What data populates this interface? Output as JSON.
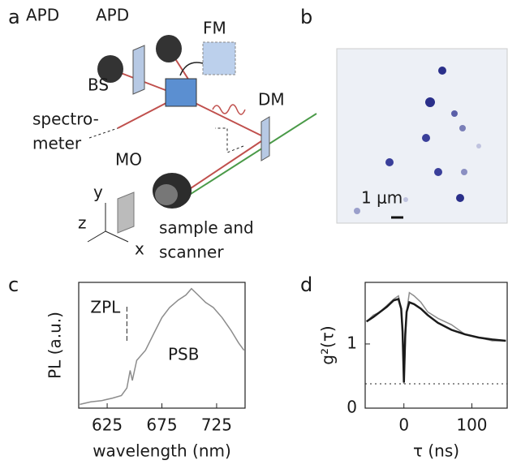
{
  "panels": {
    "a": "a",
    "b": "b",
    "c": "c",
    "d": "d"
  },
  "diagram": {
    "apd_left": "APD",
    "apd_right": "APD",
    "fm": "FM",
    "bs": "BS",
    "spectrometer_1": "spectro-",
    "spectrometer_2": "meter",
    "dm": "DM",
    "mo": "MO",
    "axis_y": "y",
    "axis_z": "z",
    "axis_x": "x",
    "sample_1": "sample and",
    "sample_2": "scanner"
  },
  "image": {
    "scale_bar": "1 μm"
  },
  "chart_data": [
    {
      "type": "line",
      "xlabel": "wavelength (nm)",
      "ylabel": "PL (a.u.)",
      "x": [
        600,
        610,
        620,
        630,
        638,
        643,
        646,
        648,
        652,
        660,
        668,
        675,
        682,
        690,
        697,
        702,
        708,
        715,
        722,
        730,
        738,
        745,
        750
      ],
      "series": [
        {
          "color": "#8c8c8c",
          "values": [
            0.03,
            0.05,
            0.06,
            0.08,
            0.1,
            0.16,
            0.3,
            0.22,
            0.38,
            0.46,
            0.6,
            0.72,
            0.8,
            0.86,
            0.9,
            0.95,
            0.9,
            0.84,
            0.8,
            0.72,
            0.62,
            0.52,
            0.46
          ]
        }
      ],
      "xlim": [
        599,
        751
      ],
      "ylim": [
        0,
        1
      ],
      "xticks": [
        625,
        675,
        725
      ],
      "annotations": [
        {
          "text": "ZPL",
          "x": 643
        },
        {
          "text": "PSB"
        }
      ]
    },
    {
      "type": "line",
      "xlabel": "τ (ns)",
      "ylabel": "g²(τ)",
      "x": [
        -55,
        -45,
        -35,
        -25,
        -15,
        -8,
        -4,
        -2,
        0,
        2,
        4,
        8,
        15,
        25,
        35,
        50,
        70,
        90,
        110,
        130,
        150
      ],
      "series": [
        {
          "color": "#8c8c8c",
          "values": [
            1.35,
            1.45,
            1.5,
            1.6,
            1.7,
            1.75,
            1.55,
            1.1,
            0.38,
            1.0,
            1.5,
            1.8,
            1.75,
            1.65,
            1.5,
            1.4,
            1.3,
            1.15,
            1.1,
            1.05,
            1.05
          ]
        },
        {
          "color": "#1a1a1a",
          "values": [
            1.35,
            1.42,
            1.5,
            1.58,
            1.68,
            1.7,
            1.55,
            1.2,
            0.4,
            1.15,
            1.5,
            1.65,
            1.62,
            1.55,
            1.45,
            1.33,
            1.22,
            1.15,
            1.1,
            1.07,
            1.05
          ]
        }
      ],
      "xlim": [
        -57,
        152
      ],
      "ylim": [
        0,
        1.96
      ],
      "xticks": [
        0,
        100
      ],
      "yticks": [
        0,
        1
      ],
      "reference_line": 0.38
    }
  ]
}
